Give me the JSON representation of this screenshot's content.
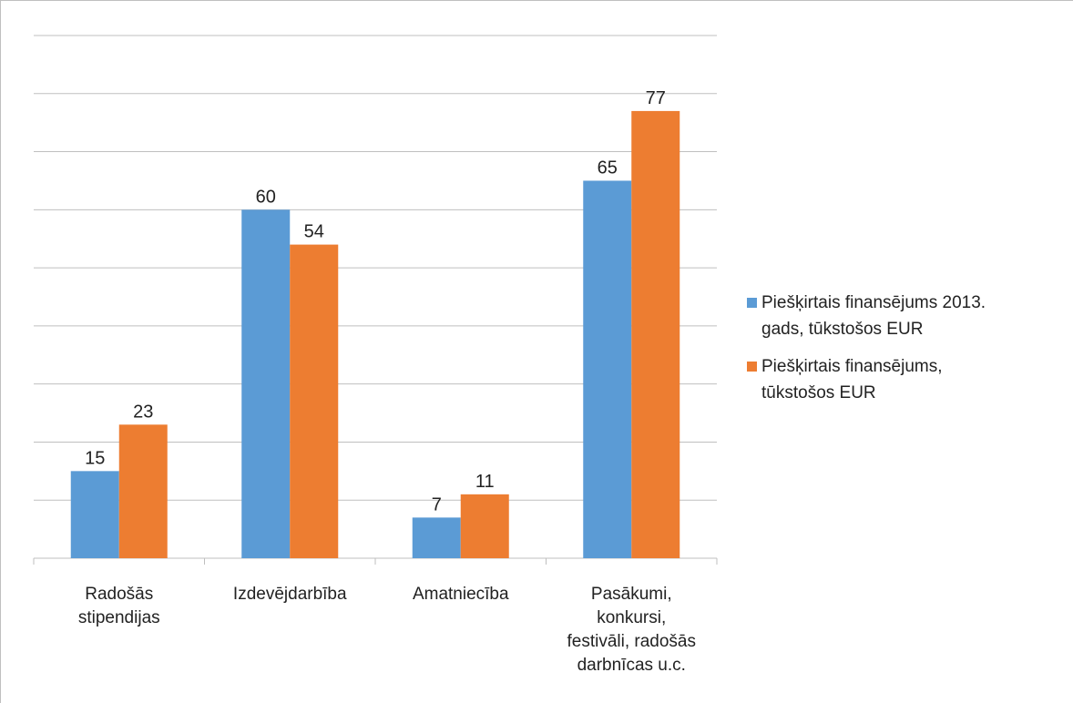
{
  "chart_data": {
    "type": "bar",
    "title": "",
    "xlabel": "",
    "ylabel": "",
    "ylim": [
      0,
      90
    ],
    "grid": true,
    "legend_position": "right",
    "categories": [
      [
        "Radošās",
        "stipendijas"
      ],
      [
        "Izdevējdarbība"
      ],
      [
        "Amatniecība"
      ],
      [
        "Pasākumi,",
        "konkursi,",
        "festivāli, radošās",
        "darbnīcas u.c."
      ]
    ],
    "series": [
      {
        "name": "Piešķirtais finansējums 2013. gads, tūkstošos EUR",
        "name_lines": [
          "Piešķirtais finansējums 2013.",
          "gads, tūkstošos EUR"
        ],
        "color": "#5b9bd5",
        "values": [
          15,
          60,
          7,
          65
        ],
        "labels": [
          "15",
          "60",
          "7",
          "65"
        ]
      },
      {
        "name": "Piešķirtais finansējums, tūkstošos EUR",
        "name_lines": [
          "Piešķirtais finansējums,",
          "tūkstošos EUR"
        ],
        "color": "#ed7d31",
        "values": [
          23,
          54,
          11,
          77
        ],
        "labels": [
          "23",
          "54",
          "11",
          "77"
        ]
      }
    ]
  }
}
